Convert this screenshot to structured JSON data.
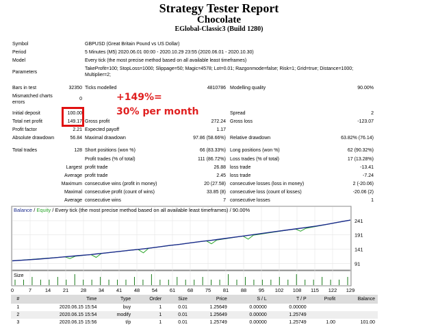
{
  "header": {
    "title": "Strategy Tester Report",
    "ea_name": "Chocolate",
    "server": "EGlobal-Classic3 (Build 1280)"
  },
  "settings": {
    "symbol_label": "Symbol",
    "symbol_value": "GBPUSD (Great Britain Pound vs US Dollar)",
    "period_label": "Period",
    "period_value": "5 Minutes (M5) 2020.06.01 00:00 - 2020.10.29 23:55 (2020.06.01 - 2020.10.30)",
    "model_label": "Model",
    "model_value": "Every tick (the most precise method based on all available least timeframes)",
    "parameters_label": "Parameters",
    "parameters_line1": "TakeProfit=100; StopLoss=1000; Slippage=50; Magic=4578; Lot=0.01; Razgonmode=false; Risk=1; Grid=true; Distance=1000;",
    "parameters_line2": "Multiplier=2;"
  },
  "stats": {
    "bars_label": "Bars in test",
    "bars_value": "32350",
    "ticks_label": "Ticks modelled",
    "ticks_value": "4810786",
    "quality_label": "Modelling quality",
    "quality_value": "90.00%",
    "mismatched_label1": "Mismatched charts",
    "mismatched_label2": "errors",
    "mismatched_value": "0",
    "deposit_label": "Initial deposit",
    "deposit_value": "100.00",
    "spread_label": "Spread",
    "spread_value": "2",
    "netprofit_label": "Total net profit",
    "netprofit_value": "149.17",
    "grossprofit_label": "Gross profit",
    "grossprofit_value": "272.24",
    "grossloss_label": "Gross loss",
    "grossloss_value": "-123.07",
    "pf_label": "Profit factor",
    "pf_value": "2.21",
    "payoff_label": "Expected payoff",
    "payoff_value": "1.17",
    "absdd_label": "Absolute drawdown",
    "absdd_value": "56.84",
    "maxdd_label": "Maximal drawdown",
    "maxdd_value": "97.86 (58.66%)",
    "reldd_label": "Relative drawdown",
    "reldd_value": "63.82% (76.14)",
    "trades_label": "Total trades",
    "trades_value": "128",
    "short_label": "Short positions (won %)",
    "short_value": "66 (83.33%)",
    "long_label": "Long positions (won %)",
    "long_value": "62 (90.32%)",
    "ptrades_label": "Profit trades (% of total)",
    "ptrades_value": "111 (86.72%)",
    "ltrades_label": "Loss trades (% of total)",
    "ltrades_value": "17 (13.28%)",
    "largest_label": "Largest",
    "largest_profit_label": "profit trade",
    "largest_profit_value": "26.88",
    "largest_loss_label": "loss trade",
    "largest_loss_value": "-13.41",
    "average_label": "Average",
    "average_profit_label": "profit trade",
    "average_profit_value": "2.45",
    "average_loss_label": "loss trade",
    "average_loss_value": "-7.24",
    "maximum_label": "Maximum",
    "max_wins_label": "consecutive wins (profit in money)",
    "max_wins_value": "20 (27.58)",
    "max_losses_label": "consecutive losses (loss in money)",
    "max_losses_value": "2 (-20.06)",
    "maximal_label": "Maximal",
    "maxl_profit_label": "consecutive profit (count of wins)",
    "maxl_profit_value": "33.85 (8)",
    "maxl_loss_label": "consecutive loss (count of losses)",
    "maxl_loss_value": "-20.06 (2)",
    "avg_label": "Average",
    "avg_wins_label": "consecutive wins",
    "avg_wins_value": "7",
    "avg_losses_label": "consecutive losses",
    "avg_losses_value": "1"
  },
  "promo": {
    "line1": "+149%=",
    "line2": "30% per month",
    "color": "#e02020"
  },
  "chart_data": {
    "type": "line",
    "legend_balance": "Balance",
    "legend_sep": " / ",
    "legend_equity": "Equity",
    "legend_rest": " / Every tick (the most precise method based on all available least timeframes) / 90.00%",
    "y_ticks": [
      "241",
      "191",
      "141",
      "91"
    ],
    "ylim": [
      70,
      260
    ],
    "x_ticks": [
      "0",
      "7",
      "14",
      "21",
      "28",
      "34",
      "41",
      "48",
      "54",
      "61",
      "68",
      "75",
      "81",
      "88",
      "95",
      "102",
      "108",
      "115",
      "122",
      "129"
    ],
    "xlim": [
      0,
      129
    ],
    "size_label": "Size",
    "balance_color": "#1a2a8c",
    "equity_color": "#2aa52a",
    "series": [
      {
        "name": "Balance",
        "x": [
          0,
          5,
          10,
          15,
          20,
          25,
          30,
          32,
          35,
          40,
          45,
          48,
          52,
          56,
          60,
          64,
          68,
          72,
          76,
          80,
          84,
          88,
          92,
          96,
          100,
          104,
          108,
          112,
          116,
          120,
          124,
          129
        ],
        "values": [
          100,
          103,
          106,
          110,
          114,
          118,
          122,
          124,
          127,
          132,
          137,
          140,
          144,
          149,
          154,
          158,
          163,
          168,
          172,
          177,
          182,
          187,
          192,
          197,
          202,
          207,
          212,
          217,
          222,
          228,
          235,
          243
        ]
      },
      {
        "name": "Equity",
        "x": [
          0,
          20,
          22,
          24,
          30,
          32,
          34,
          48,
          50,
          52,
          74,
          76,
          78,
          88,
          90,
          92,
          108,
          110,
          112,
          129
        ],
        "values": [
          100,
          114,
          108,
          116,
          122,
          112,
          126,
          140,
          128,
          144,
          170,
          160,
          173,
          187,
          176,
          190,
          212,
          204,
          214,
          243
        ]
      }
    ],
    "size_bars": [
      1,
      1,
      2,
      1,
      1,
      2,
      1,
      3,
      1,
      1,
      2,
      1,
      1,
      1,
      2,
      1,
      3,
      1,
      1,
      2,
      1,
      1,
      2,
      1,
      1,
      3,
      1,
      2,
      1,
      1,
      1,
      2,
      1,
      3,
      1,
      1,
      2,
      1,
      1,
      2
    ]
  },
  "orders": {
    "columns": [
      "#",
      "Time",
      "Type",
      "Order",
      "Size",
      "Price",
      "S / L",
      "T / P",
      "Profit",
      "Balance"
    ],
    "rows": [
      [
        "1",
        "2020.06.15 15:54",
        "buy",
        "1",
        "0.01",
        "1.25649",
        "0.00000",
        "0.00000",
        "",
        ""
      ],
      [
        "2",
        "2020.06.15 15:54",
        "modify",
        "1",
        "0.01",
        "1.25649",
        "0.00000",
        "1.25749",
        "",
        ""
      ],
      [
        "3",
        "2020.06.15 15:56",
        "t/p",
        "1",
        "0.01",
        "1.25749",
        "0.00000",
        "1.25749",
        "1.00",
        "101.00"
      ]
    ]
  }
}
